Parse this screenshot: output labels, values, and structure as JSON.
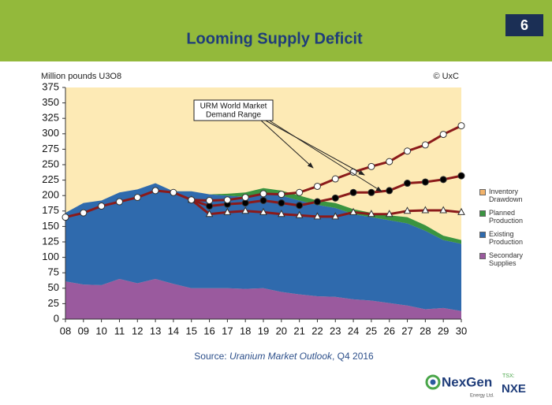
{
  "slide": {
    "title": "Looming Supply Deficit",
    "page_number": "6",
    "source": {
      "prefix": "Source:",
      "title": "Uranium Market Outlook",
      "suffix": ", Q4 2016"
    },
    "logo": {
      "name": "NexGen",
      "subtitle": "Energy Ltd.",
      "exchange": "TSX:",
      "ticker": "NXE"
    }
  },
  "chart_data": {
    "type": "area",
    "y_label": "Million pounds U3O8",
    "credit": "© UxC",
    "annotation": [
      "URM World Market",
      "Demand Range"
    ],
    "categories": [
      "08",
      "09",
      "10",
      "11",
      "12",
      "13",
      "14",
      "15",
      "16",
      "17",
      "18",
      "19",
      "20",
      "21",
      "22",
      "23",
      "24",
      "25",
      "26",
      "27",
      "28",
      "29",
      "30"
    ],
    "ylim": [
      0,
      375
    ],
    "yticks": [
      0,
      25,
      50,
      75,
      100,
      125,
      150,
      175,
      200,
      225,
      250,
      275,
      300,
      325,
      350,
      375
    ],
    "series": [
      {
        "name": "Secondary Supplies",
        "color": "#9a5a9e",
        "values": [
          61,
          56,
          55,
          65,
          58,
          65,
          57,
          50,
          50,
          50,
          49,
          50,
          44,
          40,
          37,
          36,
          32,
          30,
          26,
          22,
          16,
          18,
          13
        ]
      },
      {
        "name": "Existing Production",
        "color": "#2f6aad",
        "values": [
          111,
          132,
          137,
          140,
          152,
          155,
          150,
          157,
          152,
          150,
          149,
          155,
          156,
          152,
          148,
          144,
          138,
          135,
          134,
          133,
          127,
          110,
          109
        ]
      },
      {
        "name": "Planned Production",
        "color": "#3a9440",
        "values": [
          0,
          0,
          0,
          0,
          0,
          0,
          0,
          0,
          0,
          3,
          7,
          7,
          8,
          8,
          7,
          8,
          8,
          7,
          8,
          10,
          9,
          7,
          6
        ]
      },
      {
        "name": "Inventory Drawdown",
        "color": "#f2b36b",
        "values": [
          0,
          0,
          0,
          0,
          0,
          0,
          0,
          0,
          0,
          0,
          0,
          0,
          0,
          0,
          0,
          0,
          0,
          0,
          0,
          0,
          0,
          0,
          0
        ]
      }
    ],
    "legend_order": [
      3,
      2,
      1,
      0
    ],
    "demand_color": "#8b1a1a",
    "demand_lines": [
      {
        "marker": "triangle-open",
        "values": [
          null,
          null,
          null,
          null,
          null,
          null,
          null,
          193,
          170,
          173,
          175,
          173,
          170,
          168,
          166,
          166,
          173,
          170,
          170,
          175,
          176,
          176,
          173
        ]
      },
      {
        "marker": "circle-filled",
        "values": [
          null,
          null,
          null,
          null,
          null,
          null,
          null,
          193,
          183,
          186,
          188,
          192,
          188,
          184,
          190,
          196,
          205,
          205,
          208,
          220,
          222,
          226,
          232
        ]
      },
      {
        "marker": "circle-open",
        "values": [
          165,
          172,
          183,
          190,
          197,
          208,
          205,
          193,
          192,
          193,
          197,
          203,
          202,
          205,
          215,
          227,
          238,
          247,
          255,
          272,
          282,
          299,
          313
        ]
      }
    ],
    "plot_background": "#fdeab5"
  }
}
